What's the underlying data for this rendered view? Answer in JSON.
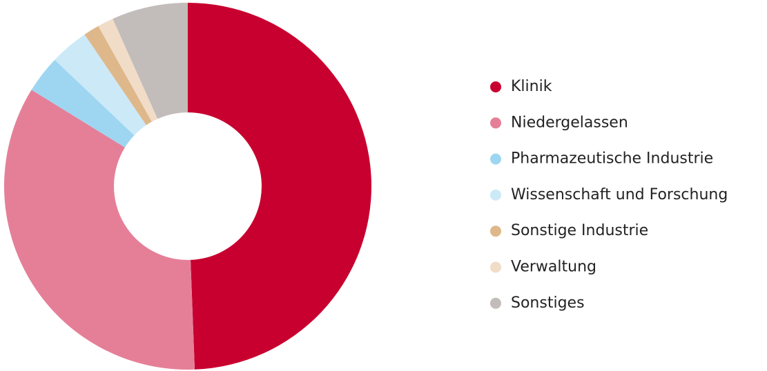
{
  "chart_data": {
    "type": "donut",
    "categories": [
      "Klinik",
      "Niedergelassen",
      "Pharmazeutische Industrie",
      "Wissenschaft und Forschung",
      "Sonstige Industrie",
      "Verwaltung",
      "Sonstiges"
    ],
    "values": [
      49.4,
      34.4,
      3.3,
      3.4,
      1.4,
      1.4,
      6.7
    ],
    "colors": [
      "#c8002f",
      "#e57f98",
      "#9ed6f2",
      "#cce9f8",
      "#deb88a",
      "#f1dcc8",
      "#c2bcba"
    ],
    "legend": "right"
  }
}
